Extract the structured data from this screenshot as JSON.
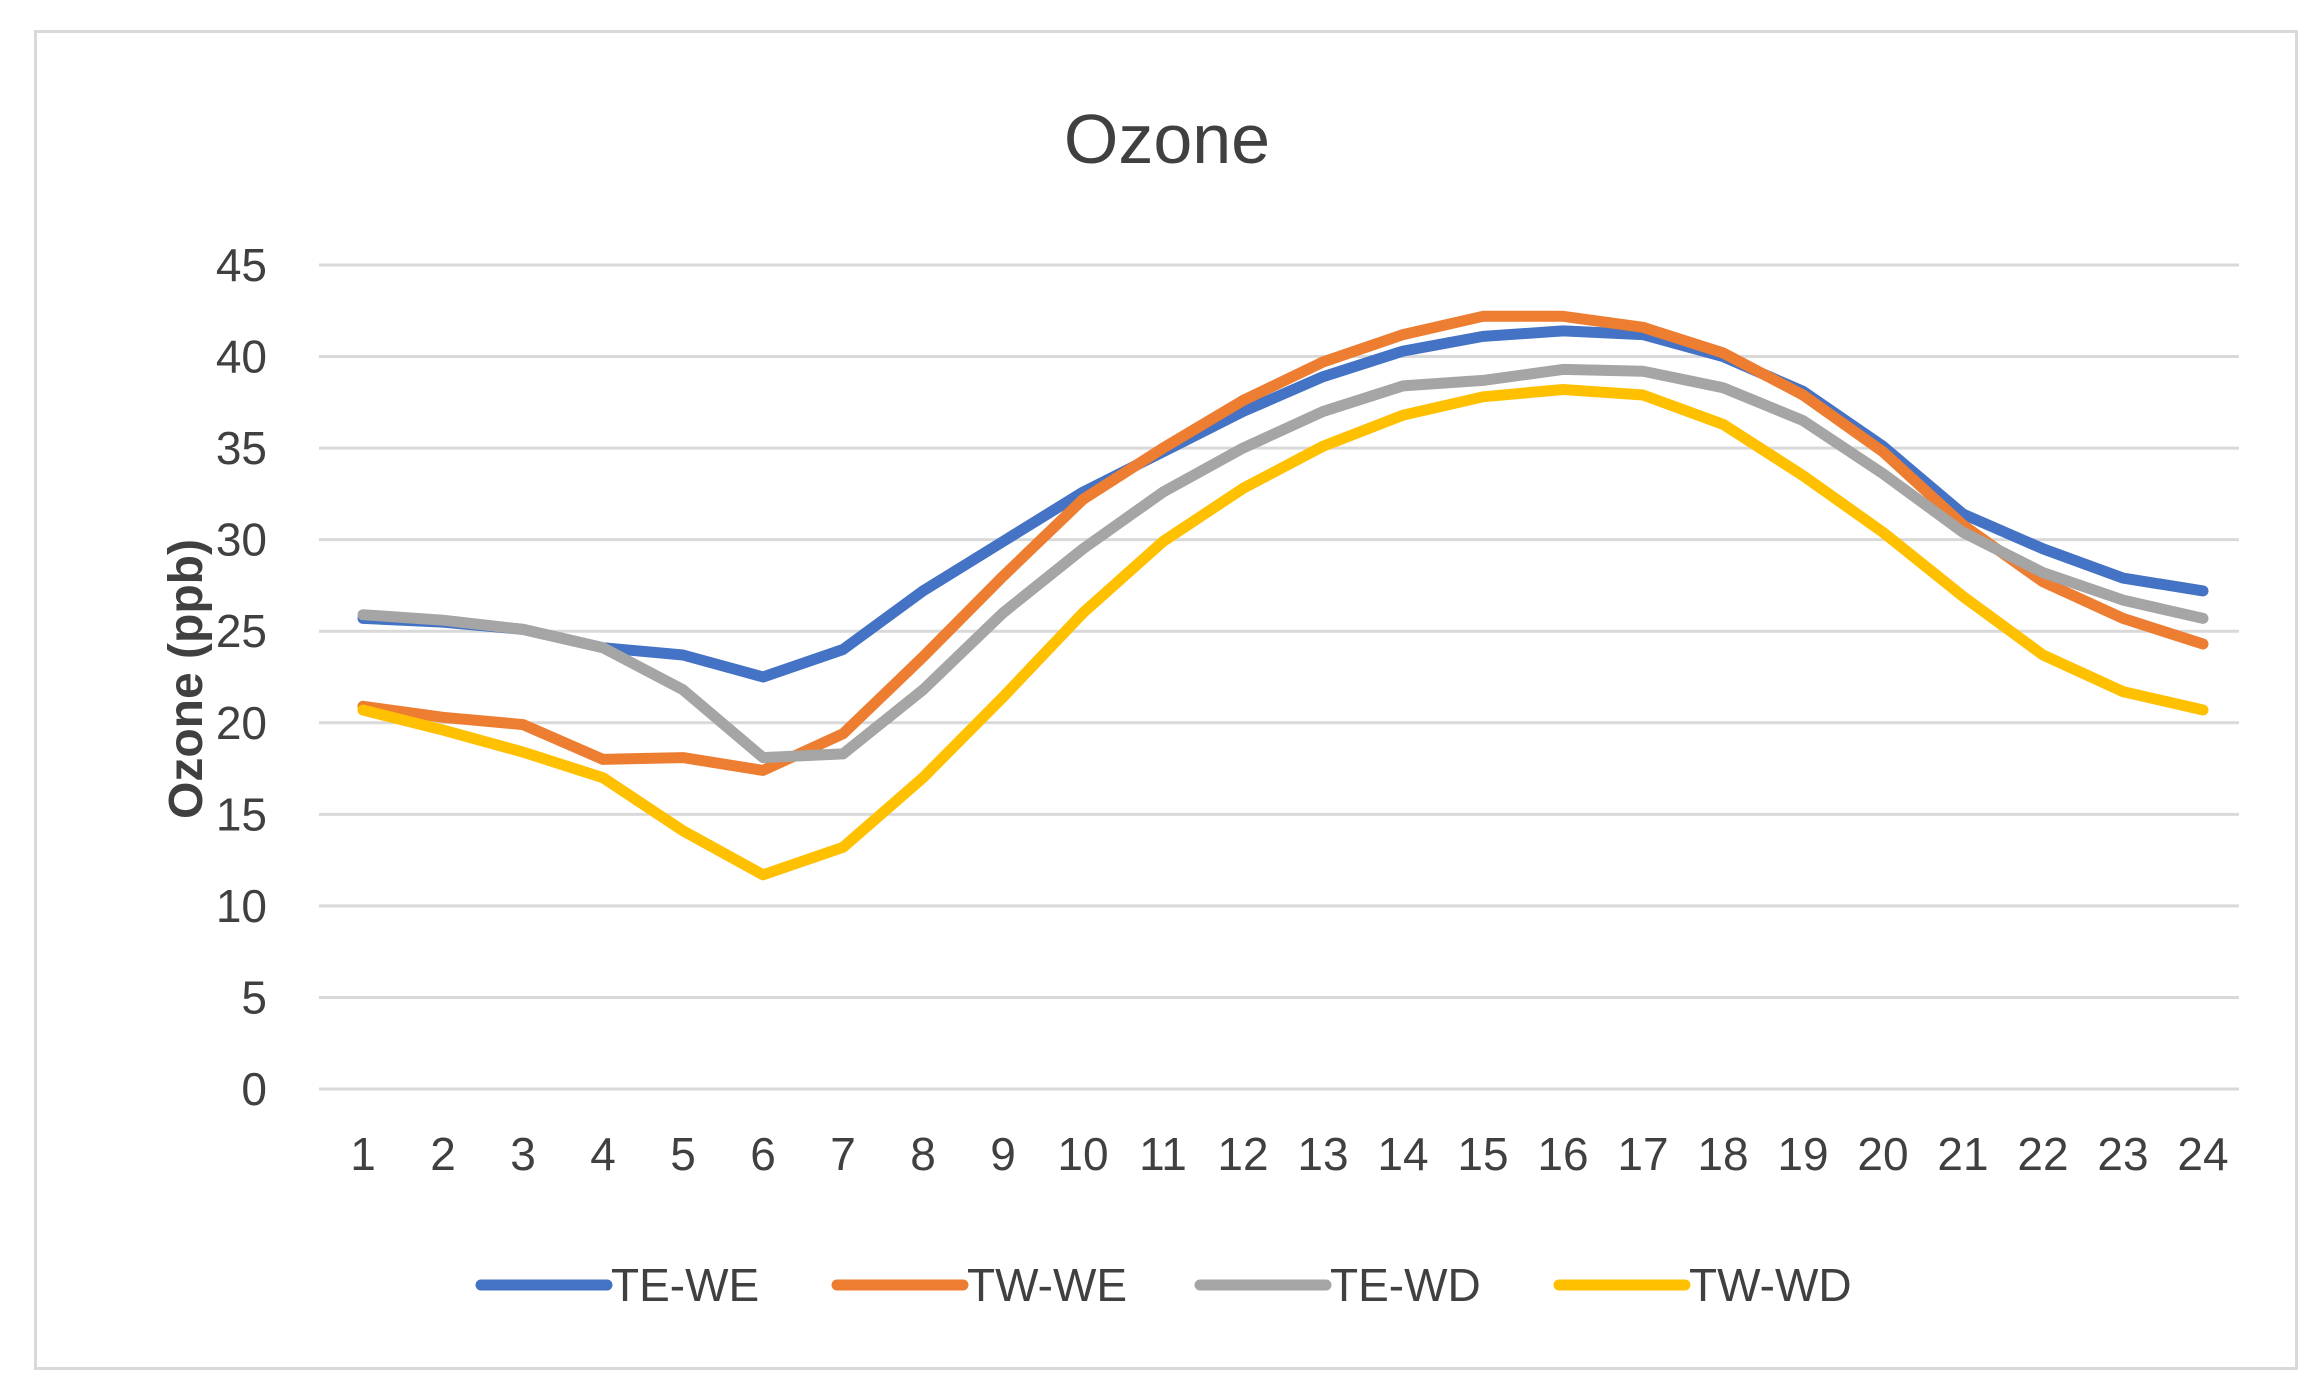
{
  "chart_data": {
    "type": "line",
    "title": "Ozone",
    "xlabel": "",
    "ylabel": "Ozone (ppb)",
    "ylim": [
      0,
      45
    ],
    "yticks": [
      "0",
      "5",
      "10",
      "15",
      "20",
      "25",
      "30",
      "35",
      "40",
      "45"
    ],
    "grid": true,
    "legend_position": "bottom",
    "categories": [
      "1",
      "2",
      "3",
      "4",
      "5",
      "6",
      "7",
      "8",
      "9",
      "10",
      "11",
      "12",
      "13",
      "14",
      "15",
      "16",
      "17",
      "18",
      "19",
      "20",
      "21",
      "22",
      "23",
      "24"
    ],
    "series": [
      {
        "name": "TE-WE",
        "color": "#4472c4",
        "values": [
          25.7,
          25.5,
          25.1,
          24.1,
          23.7,
          22.5,
          24.0,
          27.2,
          29.9,
          32.6,
          34.8,
          37.0,
          38.9,
          40.3,
          41.1,
          41.4,
          41.2,
          40.0,
          38.1,
          35.1,
          31.4,
          29.5,
          27.9,
          27.2
        ]
      },
      {
        "name": "TW-WE",
        "color": "#ed7d31",
        "values": [
          20.9,
          20.3,
          19.9,
          18.0,
          18.1,
          17.4,
          19.4,
          23.6,
          28.0,
          32.2,
          35.0,
          37.6,
          39.7,
          41.2,
          42.2,
          42.2,
          41.6,
          40.2,
          37.9,
          34.8,
          30.8,
          27.7,
          25.7,
          24.3
        ]
      },
      {
        "name": "TE-WD",
        "color": "#a5a5a5",
        "values": [
          25.9,
          25.6,
          25.1,
          24.1,
          21.8,
          18.1,
          18.3,
          21.8,
          26.0,
          29.5,
          32.6,
          35.0,
          37.0,
          38.4,
          38.7,
          39.3,
          39.2,
          38.3,
          36.5,
          33.6,
          30.4,
          28.2,
          26.7,
          25.7
        ]
      },
      {
        "name": "TW-WD",
        "color": "#ffc000",
        "values": [
          20.7,
          19.6,
          18.4,
          17.0,
          14.1,
          11.7,
          13.2,
          17.0,
          21.4,
          26.0,
          29.9,
          32.8,
          35.1,
          36.8,
          37.8,
          38.2,
          37.9,
          36.3,
          33.5,
          30.4,
          26.9,
          23.7,
          21.7,
          20.7
        ]
      }
    ]
  }
}
